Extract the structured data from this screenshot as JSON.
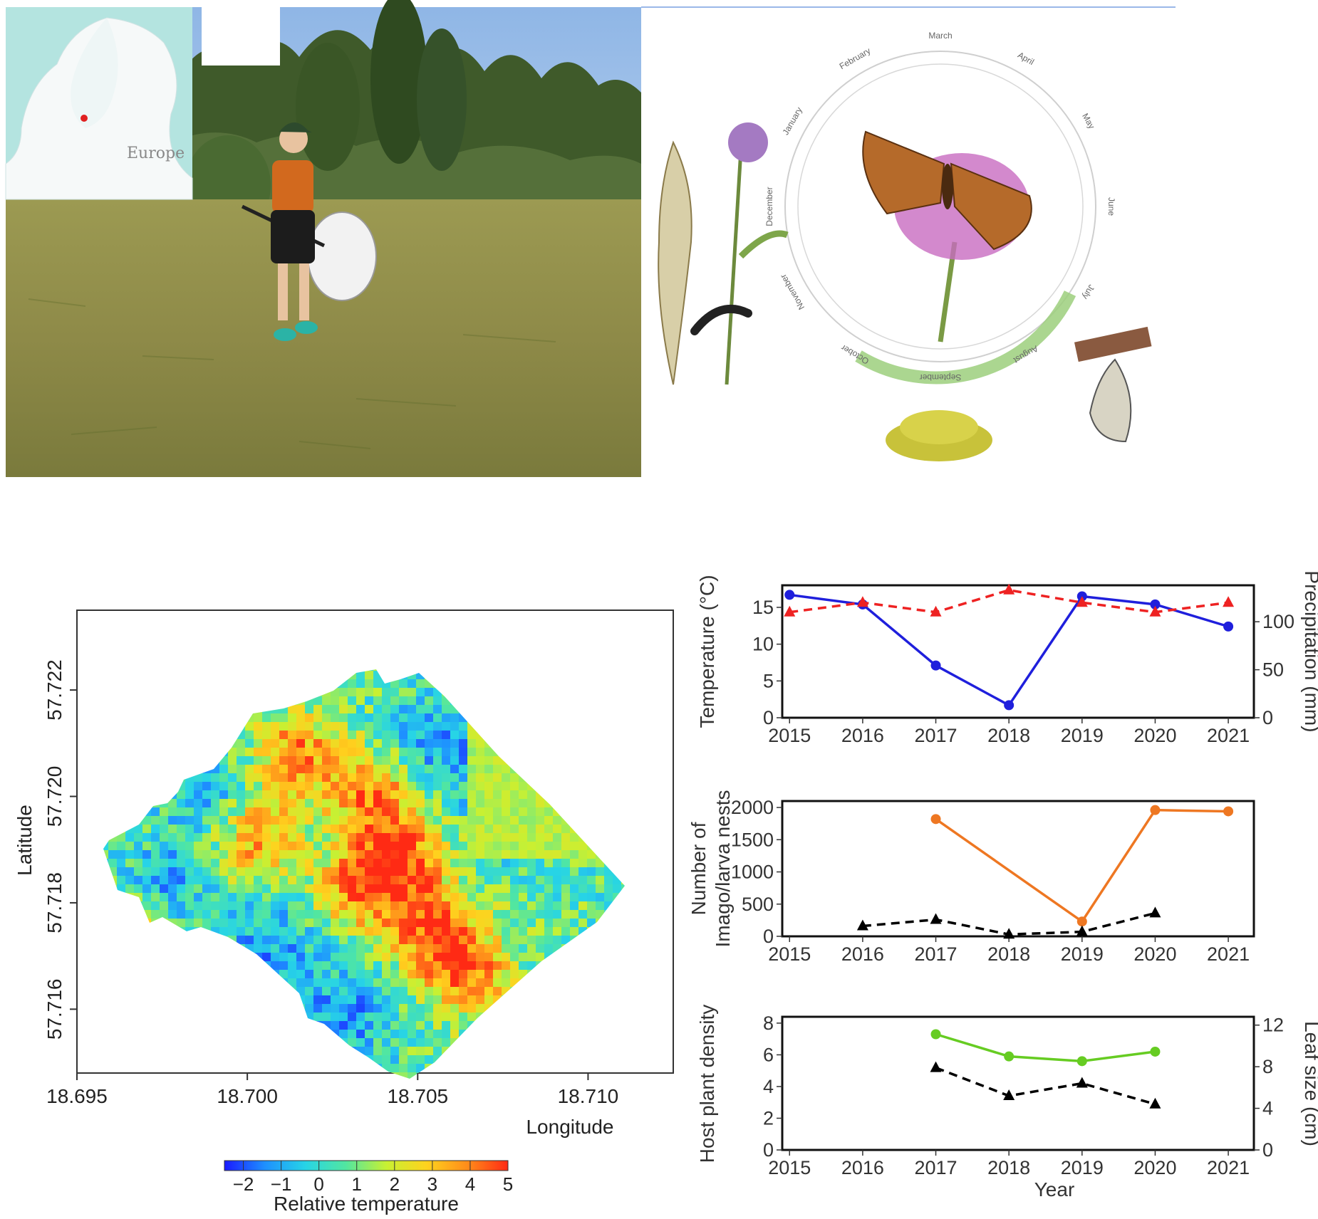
{
  "photo": {
    "inset_map_label": "Europe"
  },
  "lifecycle": {
    "months": [
      "January",
      "February",
      "March",
      "April",
      "May",
      "June",
      "July",
      "August",
      "September",
      "October",
      "November",
      "December"
    ]
  },
  "colorbar": {
    "ticks": [
      "−2",
      "−1",
      "0",
      "1",
      "2",
      "3",
      "4",
      "5"
    ],
    "label": "Relative temperature",
    "range": [
      -2.5,
      5
    ],
    "colors": [
      "#1a1aff",
      "#1e90ff",
      "#27d4e6",
      "#52e6a0",
      "#c8f032",
      "#ffd21e",
      "#ff8c1a",
      "#ff2a14"
    ]
  },
  "chart_data": [
    {
      "type": "heatmap",
      "xlabel": "Longitude",
      "ylabel": "Latitude",
      "x_ticks": [
        "18.695",
        "18.700",
        "18.705",
        "18.710"
      ],
      "y_ticks": [
        "57.722",
        "57.720",
        "57.718",
        "57.716"
      ],
      "xlim": [
        18.695,
        18.7125
      ],
      "ylim": [
        57.7148,
        57.7235
      ],
      "colorbar_label": "Relative temperature",
      "colorbar_range": [
        -2.5,
        5
      ]
    },
    {
      "type": "line",
      "x": [
        2015,
        2016,
        2017,
        2018,
        2019,
        2020,
        2021
      ],
      "x_ticks": [
        "2015",
        "2016",
        "2017",
        "2018",
        "2019",
        "2020",
        "2021"
      ],
      "ylabel": "Temperature (°C)",
      "y2label": "Precipitation (mm)",
      "ylim": [
        0,
        18
      ],
      "y2lim": [
        0,
        138
      ],
      "y_ticks": [
        "0",
        "5",
        "10",
        "15"
      ],
      "y2_ticks": [
        "0",
        "50",
        "100"
      ],
      "series": [
        {
          "axis": "left",
          "color": "#1f1fdc",
          "style": "solid",
          "marker": "circle",
          "values": [
            16.7,
            15.4,
            7.1,
            1.7,
            16.5,
            15.4,
            12.4
          ]
        },
        {
          "axis": "right",
          "color": "#ee2222",
          "style": "dashed",
          "marker": "triangle",
          "values": [
            110,
            120,
            110,
            133,
            120,
            110,
            120
          ]
        }
      ]
    },
    {
      "type": "line",
      "x": [
        2015,
        2016,
        2017,
        2018,
        2019,
        2020,
        2021
      ],
      "x_ticks": [
        "2015",
        "2016",
        "2017",
        "2018",
        "2019",
        "2020",
        "2021"
      ],
      "ylabel": "Number of Imago/larva nests",
      "ylim": [
        0,
        2100
      ],
      "y_ticks": [
        "0",
        "500",
        "1000",
        "1500",
        "2000"
      ],
      "series": [
        {
          "color": "#ee7722",
          "style": "solid",
          "marker": "circle",
          "values": [
            null,
            null,
            1820,
            null,
            230,
            1960,
            1940
          ]
        },
        {
          "color": "#000000",
          "style": "dashed",
          "marker": "triangle",
          "values": [
            null,
            160,
            260,
            30,
            70,
            360,
            null
          ]
        }
      ]
    },
    {
      "type": "line",
      "x": [
        2015,
        2016,
        2017,
        2018,
        2019,
        2020,
        2021
      ],
      "x_ticks": [
        "2015",
        "2016",
        "2017",
        "2018",
        "2019",
        "2020",
        "2021"
      ],
      "xlabel": "Year",
      "ylabel": "Host plant density",
      "y2label": "Leaf size (cm)",
      "ylim": [
        0,
        8.4
      ],
      "y2lim": [
        0,
        12.8
      ],
      "y_ticks": [
        "0",
        "2",
        "4",
        "6",
        "8"
      ],
      "y2_ticks": [
        "0",
        "4",
        "8",
        "12"
      ],
      "series": [
        {
          "axis": "left",
          "color": "#66cc22",
          "style": "solid",
          "marker": "circle",
          "values": [
            null,
            null,
            7.3,
            5.9,
            5.6,
            6.2,
            null
          ]
        },
        {
          "axis": "right",
          "color": "#000000",
          "style": "dashed",
          "marker": "triangle",
          "values": [
            null,
            null,
            7.9,
            5.2,
            6.4,
            4.4,
            null
          ]
        }
      ]
    }
  ]
}
